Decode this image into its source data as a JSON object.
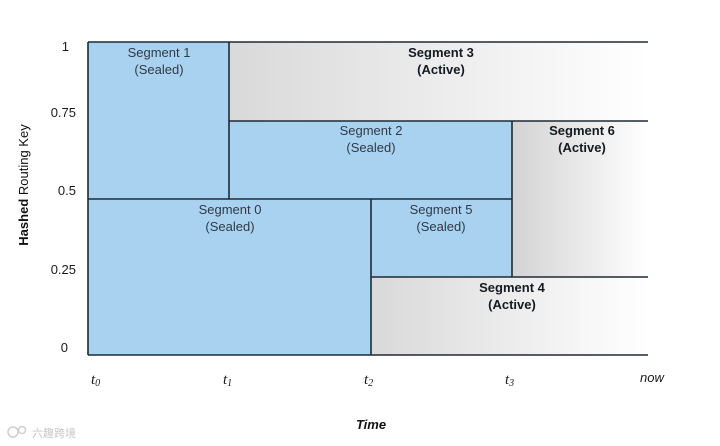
{
  "diagram": {
    "y_axis": {
      "label_bold": "Hashed",
      "label_rest": " Routing Key",
      "ticks": [
        "0",
        "0.25",
        "0.5",
        "0.75",
        "1"
      ]
    },
    "x_axis": {
      "label": "Time",
      "ticks": [
        {
          "base": "t",
          "sub": "0"
        },
        {
          "base": "t",
          "sub": "1"
        },
        {
          "base": "t",
          "sub": "2"
        },
        {
          "base": "t",
          "sub": "3"
        },
        {
          "base": "now",
          "sub": ""
        }
      ]
    },
    "segments": [
      {
        "name": "Segment 1",
        "state": "(Sealed)",
        "active": false
      },
      {
        "name": "Segment 2",
        "state": "(Sealed)",
        "active": false
      },
      {
        "name": "Segment 0",
        "state": "(Sealed)",
        "active": false
      },
      {
        "name": "Segment 5",
        "state": "(Sealed)",
        "active": false
      },
      {
        "name": "Segment 3",
        "state": "(Active)",
        "active": true
      },
      {
        "name": "Segment 6",
        "state": "(Active)",
        "active": true
      },
      {
        "name": "Segment 4",
        "state": "(Active)",
        "active": true
      }
    ],
    "colors": {
      "sealed": "#a9d2f1",
      "active_start": "#d6d6d6",
      "active_end": "#ffffff",
      "border": "#1e2a35"
    },
    "watermark": "六趣跨境"
  }
}
